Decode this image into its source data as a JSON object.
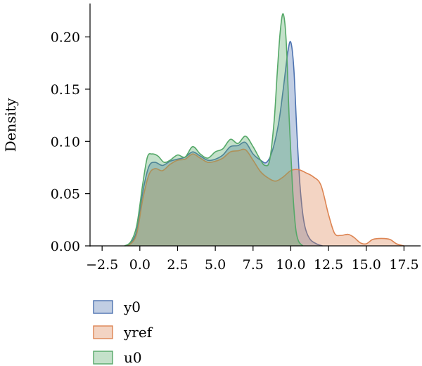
{
  "chart_data": {
    "type": "area",
    "title": "",
    "xlabel": "",
    "ylabel": "Density",
    "xlim": [
      -3.3,
      18.6
    ],
    "ylim": [
      0,
      0.232
    ],
    "x_ticks": [
      -2.5,
      0.0,
      2.5,
      5.0,
      7.5,
      10.0,
      12.5,
      15.0,
      17.5
    ],
    "x_tick_labels": [
      "−2.5",
      "0.0",
      "2.5",
      "5.0",
      "7.5",
      "10.0",
      "12.5",
      "15.0",
      "17.5"
    ],
    "y_ticks": [
      0.0,
      0.05,
      0.1,
      0.15,
      0.2
    ],
    "y_tick_labels": [
      "0.00",
      "0.05",
      "0.10",
      "0.15",
      "0.20"
    ],
    "grid": false,
    "legend_position": "below",
    "series": [
      {
        "name": "y0",
        "color": "#4c72b0",
        "x": [
          -1.0,
          -0.6,
          -0.2,
          0.2,
          0.6,
          1.0,
          1.5,
          2.0,
          2.5,
          3.0,
          3.5,
          4.0,
          4.5,
          5.0,
          5.5,
          6.0,
          6.5,
          7.0,
          7.5,
          8.0,
          8.4,
          8.8,
          9.2,
          9.5,
          9.8,
          10.0,
          10.2,
          10.4,
          10.6,
          10.8,
          11.0,
          11.3,
          11.7,
          12.1
        ],
        "y": [
          0.0,
          0.003,
          0.015,
          0.052,
          0.076,
          0.08,
          0.077,
          0.081,
          0.083,
          0.085,
          0.09,
          0.086,
          0.082,
          0.083,
          0.087,
          0.095,
          0.096,
          0.099,
          0.088,
          0.082,
          0.08,
          0.092,
          0.118,
          0.15,
          0.185,
          0.195,
          0.17,
          0.11,
          0.06,
          0.03,
          0.015,
          0.006,
          0.002,
          0.0
        ]
      },
      {
        "name": "yref",
        "color": "#dd8452",
        "x": [
          -1.0,
          -0.6,
          -0.2,
          0.2,
          0.6,
          1.0,
          1.5,
          2.0,
          2.5,
          3.0,
          3.5,
          4.0,
          4.5,
          5.0,
          5.5,
          6.0,
          6.5,
          7.0,
          7.5,
          8.0,
          8.5,
          9.0,
          9.5,
          10.0,
          10.5,
          11.0,
          11.5,
          12.0,
          12.5,
          12.9,
          13.3,
          13.8,
          14.2,
          14.6,
          15.0,
          15.4,
          15.8,
          16.2,
          16.6,
          17.0,
          17.5
        ],
        "y": [
          0.0,
          0.002,
          0.012,
          0.045,
          0.068,
          0.074,
          0.072,
          0.078,
          0.082,
          0.083,
          0.088,
          0.084,
          0.08,
          0.081,
          0.084,
          0.09,
          0.091,
          0.092,
          0.082,
          0.071,
          0.065,
          0.062,
          0.066,
          0.072,
          0.073,
          0.07,
          0.066,
          0.058,
          0.03,
          0.012,
          0.01,
          0.011,
          0.008,
          0.003,
          0.002,
          0.006,
          0.007,
          0.007,
          0.006,
          0.002,
          0.0
        ]
      },
      {
        "name": "u0",
        "color": "#55a868",
        "x": [
          -1.0,
          -0.6,
          -0.2,
          0.2,
          0.5,
          0.8,
          1.2,
          1.6,
          2.0,
          2.5,
          3.0,
          3.5,
          4.0,
          4.5,
          5.0,
          5.5,
          6.0,
          6.5,
          7.0,
          7.5,
          8.0,
          8.3,
          8.6,
          8.9,
          9.1,
          9.3,
          9.5,
          9.7,
          9.9,
          10.1,
          10.3,
          10.5,
          10.8
        ],
        "y": [
          0.0,
          0.004,
          0.02,
          0.06,
          0.085,
          0.088,
          0.086,
          0.08,
          0.082,
          0.087,
          0.085,
          0.095,
          0.088,
          0.084,
          0.09,
          0.093,
          0.102,
          0.098,
          0.105,
          0.095,
          0.082,
          0.077,
          0.082,
          0.12,
          0.165,
          0.205,
          0.222,
          0.195,
          0.12,
          0.06,
          0.02,
          0.005,
          0.0
        ]
      }
    ]
  }
}
